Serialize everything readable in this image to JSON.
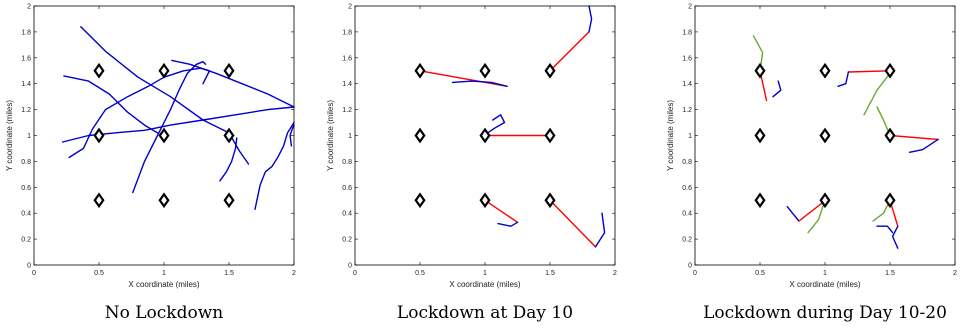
{
  "chart_data": [
    {
      "type": "line",
      "caption": "No Lockdown",
      "xlabel": "X coordinate (miles)",
      "ylabel": "Y coordinate (miles)",
      "xlim": [
        0,
        2
      ],
      "ylim": [
        0,
        2
      ],
      "xticks": [
        "0",
        "0.5",
        "1",
        "1.5",
        "2"
      ],
      "yticks": [
        "0",
        "0.2",
        "0.4",
        "0.6",
        "0.8",
        "1",
        "1.2",
        "1.4",
        "1.6",
        "1.8",
        "2"
      ],
      "markers": [
        [
          0.5,
          1.5
        ],
        [
          1,
          1.5
        ],
        [
          1.5,
          1.5
        ],
        [
          0.5,
          1
        ],
        [
          1,
          1
        ],
        [
          1.5,
          1
        ],
        [
          0.5,
          0.5
        ],
        [
          1,
          0.5
        ],
        [
          1.5,
          0.5
        ]
      ],
      "paths": [
        {
          "color": "#0000cc",
          "points": [
            [
              0.36,
              1.84
            ],
            [
              0.55,
              1.65
            ],
            [
              0.8,
              1.45
            ],
            [
              1.05,
              1.3
            ],
            [
              1.3,
              1.12
            ],
            [
              1.5,
              1.02
            ],
            [
              1.58,
              0.88
            ],
            [
              1.65,
              0.78
            ]
          ]
        },
        {
          "color": "#0000cc",
          "points": [
            [
              0.23,
              1.46
            ],
            [
              0.42,
              1.42
            ],
            [
              0.58,
              1.32
            ],
            [
              0.72,
              1.18
            ],
            [
              0.85,
              1.08
            ],
            [
              0.95,
              1.02
            ]
          ]
        },
        {
          "color": "#0000cc",
          "points": [
            [
              0.22,
              0.95
            ],
            [
              0.42,
              1.0
            ],
            [
              0.62,
              1.02
            ],
            [
              0.85,
              1.04
            ],
            [
              1.05,
              1.08
            ],
            [
              1.3,
              1.12
            ],
            [
              1.55,
              1.16
            ],
            [
              1.8,
              1.2
            ],
            [
              2.0,
              1.22
            ]
          ]
        },
        {
          "color": "#0000cc",
          "points": [
            [
              0.27,
              0.83
            ],
            [
              0.38,
              0.9
            ],
            [
              0.45,
              1.05
            ],
            [
              0.55,
              1.2
            ],
            [
              0.72,
              1.3
            ],
            [
              0.88,
              1.38
            ],
            [
              1.0,
              1.45
            ],
            [
              1.15,
              1.5
            ],
            [
              1.28,
              1.52
            ],
            [
              1.35,
              1.5
            ],
            [
              1.32,
              1.44
            ],
            [
              1.3,
              1.4
            ]
          ]
        },
        {
          "color": "#0000cc",
          "points": [
            [
              1.06,
              1.58
            ],
            [
              1.2,
              1.55
            ],
            [
              1.4,
              1.48
            ],
            [
              1.6,
              1.4
            ],
            [
              1.8,
              1.32
            ],
            [
              2.0,
              1.22
            ]
          ]
        },
        {
          "color": "#0000cc",
          "points": [
            [
              0.76,
              0.56
            ],
            [
              0.85,
              0.8
            ],
            [
              0.95,
              1.0
            ],
            [
              1.05,
              1.2
            ],
            [
              1.12,
              1.36
            ],
            [
              1.18,
              1.48
            ],
            [
              1.25,
              1.55
            ],
            [
              1.3,
              1.57
            ],
            [
              1.32,
              1.55
            ]
          ]
        },
        {
          "color": "#0000cc",
          "points": [
            [
              1.43,
              0.65
            ],
            [
              1.48,
              0.72
            ],
            [
              1.52,
              0.8
            ],
            [
              1.55,
              0.9
            ],
            [
              1.56,
              0.98
            ]
          ]
        },
        {
          "color": "#0000cc",
          "points": [
            [
              1.7,
              0.43
            ],
            [
              1.74,
              0.62
            ],
            [
              1.78,
              0.72
            ],
            [
              1.83,
              0.76
            ],
            [
              1.88,
              0.84
            ],
            [
              1.92,
              0.92
            ],
            [
              1.95,
              1.02
            ],
            [
              2.0,
              1.1
            ]
          ]
        },
        {
          "color": "#0000cc",
          "points": [
            [
              1.98,
              0.92
            ],
            [
              1.97,
              1.0
            ],
            [
              1.99,
              1.06
            ],
            [
              2.0,
              1.08
            ]
          ]
        }
      ]
    },
    {
      "type": "line",
      "caption": "Lockdown at Day 10",
      "xlabel": "X coordinate (miles)",
      "ylabel": "Y coordinate (miles)",
      "xlim": [
        0,
        2
      ],
      "ylim": [
        0,
        2
      ],
      "xticks": [
        "0",
        "0.5",
        "1",
        "1.5",
        "2"
      ],
      "yticks": [
        "0",
        "0.2",
        "0.4",
        "0.6",
        "0.8",
        "1",
        "1.2",
        "1.4",
        "1.6",
        "1.8",
        "2"
      ],
      "markers": [
        [
          0.5,
          1.5
        ],
        [
          1,
          1.5
        ],
        [
          1.5,
          1.5
        ],
        [
          0.5,
          1
        ],
        [
          1,
          1
        ],
        [
          1.5,
          1
        ],
        [
          0.5,
          0.5
        ],
        [
          1,
          0.5
        ],
        [
          1.5,
          0.5
        ]
      ],
      "paths": [
        {
          "color": "#ff0000",
          "points": [
            [
              0.5,
              1.5
            ],
            [
              1.17,
              1.38
            ]
          ]
        },
        {
          "color": "#0000cc",
          "points": [
            [
              0.75,
              1.41
            ],
            [
              0.9,
              1.42
            ],
            [
              1.05,
              1.41
            ],
            [
              1.17,
              1.38
            ]
          ]
        },
        {
          "color": "#ff0000",
          "points": [
            [
              1.5,
              1.5
            ],
            [
              1.8,
              1.8
            ]
          ]
        },
        {
          "color": "#0000cc",
          "points": [
            [
              1.8,
              1.8
            ],
            [
              1.82,
              1.9
            ],
            [
              1.8,
              2.0
            ]
          ]
        },
        {
          "color": "#ff0000",
          "points": [
            [
              1.0,
              1.0
            ],
            [
              1.5,
              1.0
            ]
          ]
        },
        {
          "color": "#0000cc",
          "points": [
            [
              1.02,
              1.02
            ],
            [
              1.08,
              1.06
            ],
            [
              1.15,
              1.1
            ],
            [
              1.12,
              1.16
            ],
            [
              1.06,
              1.12
            ]
          ]
        },
        {
          "color": "#0000cc",
          "points": [
            [
              1.48,
              0.98
            ],
            [
              1.52,
              1.0
            ],
            [
              1.5,
              1.02
            ]
          ]
        },
        {
          "color": "#ff0000",
          "points": [
            [
              1.0,
              0.5
            ],
            [
              1.25,
              0.33
            ]
          ]
        },
        {
          "color": "#0000cc",
          "points": [
            [
              1.25,
              0.33
            ],
            [
              1.2,
              0.3
            ],
            [
              1.1,
              0.32
            ]
          ]
        },
        {
          "color": "#ff0000",
          "points": [
            [
              1.5,
              0.5
            ],
            [
              1.85,
              0.14
            ]
          ]
        },
        {
          "color": "#0000cc",
          "points": [
            [
              1.85,
              0.14
            ],
            [
              1.92,
              0.25
            ],
            [
              1.9,
              0.4
            ]
          ]
        }
      ]
    },
    {
      "type": "line",
      "caption": "Lockdown during Day 10-20",
      "xlabel": "X coordinate (miles)",
      "ylabel": "Y coordinate (miles)",
      "xlim": [
        0,
        2
      ],
      "ylim": [
        0,
        2
      ],
      "xticks": [
        "0",
        "0.5",
        "1",
        "1.5",
        "2"
      ],
      "yticks": [
        "0",
        "0.2",
        "0.4",
        "0.6",
        "0.8",
        "1",
        "1.2",
        "1.4",
        "1.6",
        "1.8",
        "2"
      ],
      "markers": [
        [
          0.5,
          1.5
        ],
        [
          1,
          1.5
        ],
        [
          1.5,
          1.5
        ],
        [
          0.5,
          1
        ],
        [
          1,
          1
        ],
        [
          1.5,
          1
        ],
        [
          0.5,
          0.5
        ],
        [
          1,
          0.5
        ],
        [
          1.5,
          0.5
        ]
      ],
      "paths": [
        {
          "color": "#66aa33",
          "points": [
            [
              0.45,
              1.77
            ],
            [
              0.52,
              1.64
            ],
            [
              0.5,
              1.5
            ]
          ]
        },
        {
          "color": "#ff0000",
          "points": [
            [
              0.5,
              1.5
            ],
            [
              0.55,
              1.27
            ]
          ]
        },
        {
          "color": "#0000cc",
          "points": [
            [
              0.6,
              1.3
            ],
            [
              0.66,
              1.35
            ],
            [
              0.64,
              1.42
            ]
          ]
        },
        {
          "color": "#ff0000",
          "points": [
            [
              1.18,
              1.49
            ],
            [
              1.5,
              1.5
            ]
          ]
        },
        {
          "color": "#0000cc",
          "points": [
            [
              1.1,
              1.38
            ],
            [
              1.16,
              1.4
            ],
            [
              1.18,
              1.49
            ]
          ]
        },
        {
          "color": "#66aa33",
          "points": [
            [
              1.3,
              1.16
            ],
            [
              1.4,
              1.35
            ],
            [
              1.5,
              1.48
            ]
          ]
        },
        {
          "color": "#66aa33",
          "points": [
            [
              1.4,
              1.22
            ],
            [
              1.45,
              1.12
            ],
            [
              1.5,
              1.0
            ]
          ]
        },
        {
          "color": "#ff0000",
          "points": [
            [
              1.5,
              1.0
            ],
            [
              1.87,
              0.97
            ]
          ]
        },
        {
          "color": "#0000cc",
          "points": [
            [
              1.65,
              0.87
            ],
            [
              1.75,
              0.89
            ],
            [
              1.87,
              0.97
            ]
          ]
        },
        {
          "color": "#0000cc",
          "points": [
            [
              0.71,
              0.45
            ],
            [
              0.75,
              0.4
            ],
            [
              0.8,
              0.34
            ]
          ]
        },
        {
          "color": "#ff0000",
          "points": [
            [
              0.8,
              0.34
            ],
            [
              0.98,
              0.48
            ]
          ]
        },
        {
          "color": "#66aa33",
          "points": [
            [
              0.87,
              0.25
            ],
            [
              0.95,
              0.35
            ],
            [
              1.0,
              0.5
            ]
          ]
        },
        {
          "color": "#66aa33",
          "points": [
            [
              1.37,
              0.34
            ],
            [
              1.45,
              0.4
            ],
            [
              1.5,
              0.5
            ]
          ]
        },
        {
          "color": "#ff0000",
          "points": [
            [
              1.5,
              0.5
            ],
            [
              1.56,
              0.3
            ]
          ]
        },
        {
          "color": "#0000cc",
          "points": [
            [
              1.56,
              0.3
            ],
            [
              1.52,
              0.22
            ],
            [
              1.56,
              0.13
            ]
          ]
        },
        {
          "color": "#0000cc",
          "points": [
            [
              1.4,
              0.3
            ],
            [
              1.48,
              0.3
            ],
            [
              1.52,
              0.25
            ]
          ]
        }
      ]
    }
  ]
}
